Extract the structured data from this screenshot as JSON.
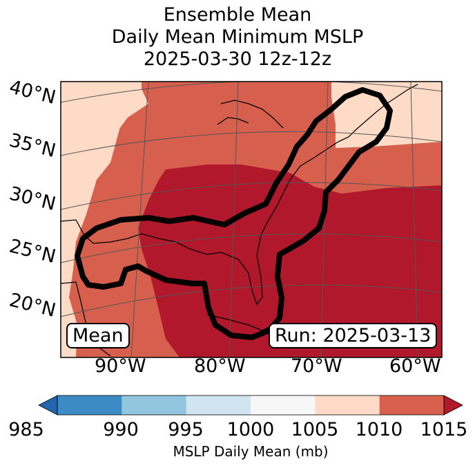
{
  "title": {
    "line1": "Ensemble Mean",
    "line2": "Daily Mean Minimum MSLP",
    "line3": "2025-03-30 12z-12z"
  },
  "latitude_labels": [
    "40°N",
    "35°N",
    "30°N",
    "25°N",
    "20°N"
  ],
  "longitude_labels": [
    "90°W",
    "80°W",
    "70°W",
    "60°W"
  ],
  "annotations": {
    "left": "Mean",
    "right": "Run: 2025-03-13"
  },
  "colorbar": {
    "label": "MSLP Daily Mean (mb)",
    "ticks": [
      "985",
      "990",
      "995",
      "1000",
      "1005",
      "1010",
      "1015"
    ],
    "bin_colors": [
      "#3d8bc4",
      "#92c5de",
      "#d1e5f0",
      "#f7f7f7",
      "#fddbc7",
      "#d6604d",
      "#b2182b"
    ],
    "under_color": "#2166ac",
    "over_color": "#b2182b"
  },
  "map_colors": {
    "background": "#f7f7f7",
    "band_1005_1010": "#fddbc7",
    "band_1010_1015": "#d6604d",
    "band_above_1015": "#b2182b",
    "contour": "#000000",
    "coastline": "#000000",
    "gridline": "#555555"
  }
}
